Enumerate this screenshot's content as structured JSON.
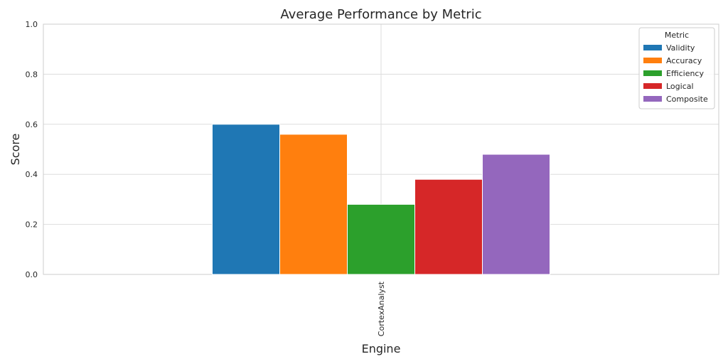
{
  "chart_data": {
    "type": "bar",
    "title": "Average Performance by Metric",
    "xlabel": "Engine",
    "ylabel": "Score",
    "categories": [
      "CortexAnalyst"
    ],
    "ylim": [
      0,
      1.0
    ],
    "yticks": [
      "0.0",
      "0.2",
      "0.4",
      "0.6",
      "0.8",
      "1.0"
    ],
    "grid": true,
    "legend": {
      "title": "Metric",
      "placement": "top-right"
    },
    "series": [
      {
        "name": "Validity",
        "values": [
          0.6
        ],
        "color": "#1f77b4"
      },
      {
        "name": "Accuracy",
        "values": [
          0.56
        ],
        "color": "#ff7f0e"
      },
      {
        "name": "Efficiency",
        "values": [
          0.28
        ],
        "color": "#2ca02c"
      },
      {
        "name": "Logical",
        "values": [
          0.38
        ],
        "color": "#d62728"
      },
      {
        "name": "Composite",
        "values": [
          0.48
        ],
        "color": "#9467bd"
      }
    ]
  }
}
